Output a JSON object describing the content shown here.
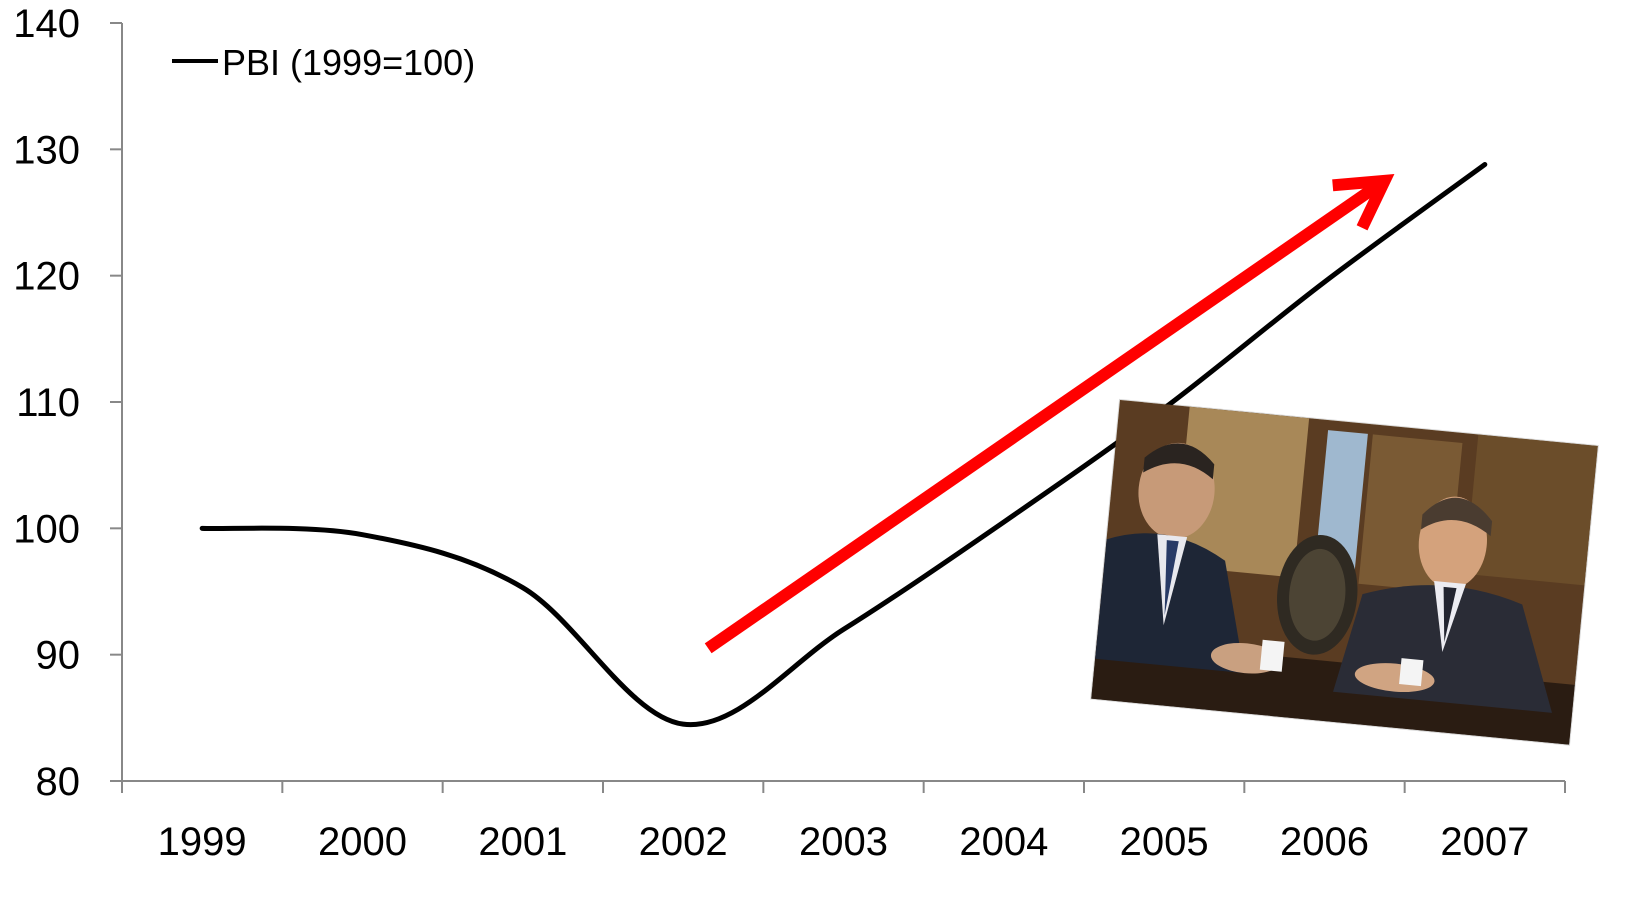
{
  "chart_data": {
    "type": "line",
    "categories": [
      "1999",
      "2000",
      "2001",
      "2002",
      "2003",
      "2004",
      "2005",
      "2006",
      "2007"
    ],
    "series": [
      {
        "name": "PBI (1999=100)",
        "values": [
          100,
          99.5,
          95.3,
          84.5,
          92.0,
          100.5,
          109.5,
          119.5,
          128.8
        ],
        "color": "#000000"
      }
    ],
    "ylim": [
      80,
      140
    ],
    "yticks": [
      "80",
      "90",
      "100",
      "110",
      "120",
      "130",
      "140"
    ],
    "grid": false,
    "legend": "top-left",
    "annotations": [
      {
        "kind": "arrow",
        "color": "#ff0000",
        "from": {
          "x": "2002",
          "y": 90.5
        },
        "to": {
          "x": "2006",
          "y": 127.5
        }
      },
      {
        "kind": "photo",
        "content": "photograph of two men in suits talking at a table, Argentine flag in background"
      }
    ]
  }
}
